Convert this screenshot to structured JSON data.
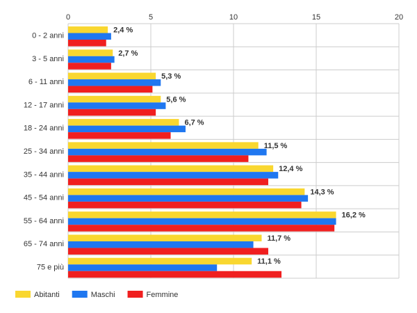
{
  "chart_data": {
    "type": "bar",
    "orientation": "horizontal",
    "title": "",
    "xlabel": "",
    "ylabel": "",
    "xlim": [
      0,
      20
    ],
    "x_ticks": [
      "0",
      "5",
      "10",
      "15",
      "20"
    ],
    "grid": true,
    "legend_position": "bottom-left",
    "categories": [
      "0 - 2 anni",
      "3 - 5 anni",
      "6 - 11 anni",
      "12 - 17 anni",
      "18 - 24 anni",
      "25 - 34 anni",
      "35 - 44 anni",
      "45 - 54 anni",
      "55 - 64 anni",
      "65 - 74 anni",
      "75 e più"
    ],
    "series": [
      {
        "name": "Abitanti",
        "color": "#f9d730",
        "values": [
          2.4,
          2.7,
          5.3,
          5.6,
          6.7,
          11.5,
          12.4,
          14.3,
          16.2,
          11.7,
          11.1
        ]
      },
      {
        "name": "Maschi",
        "color": "#1f77f0",
        "values": [
          2.6,
          2.8,
          5.6,
          5.9,
          7.1,
          12.0,
          12.7,
          14.5,
          16.2,
          11.2,
          9.0
        ]
      },
      {
        "name": "Femmine",
        "color": "#f01f1f",
        "values": [
          2.3,
          2.6,
          5.1,
          5.3,
          6.2,
          10.9,
          12.1,
          14.1,
          16.1,
          12.1,
          12.9
        ]
      }
    ],
    "data_labels": [
      "2,4 %",
      "2,7 %",
      "5,3 %",
      "5,6 %",
      "6,7 %",
      "11,5 %",
      "12,4 %",
      "14,3 %",
      "16,2 %",
      "11,7 %",
      "11,1 %"
    ]
  }
}
